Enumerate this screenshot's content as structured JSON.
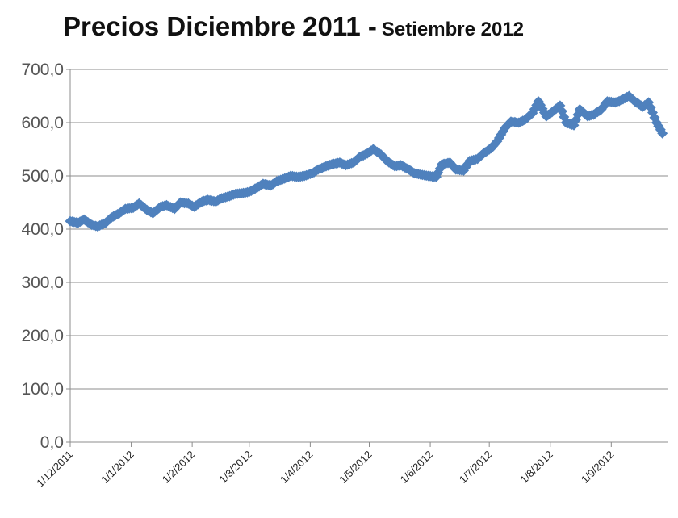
{
  "chart_data": {
    "type": "line",
    "title": "Precios Diciembre 2011 -",
    "subtitle": "Setiembre 2012",
    "xlabel": "",
    "ylabel": "",
    "ylim": [
      0,
      700
    ],
    "yticks": [
      "0,0",
      "100,0",
      "200,0",
      "300,0",
      "400,0",
      "500,0",
      "600,0",
      "700,0"
    ],
    "xlim": [
      "2011-12-01",
      "2012-09-30"
    ],
    "xticks": [
      {
        "date": "2011-12-01",
        "label": "1/12/2011"
      },
      {
        "date": "2012-01-01",
        "label": "1/1/2012"
      },
      {
        "date": "2012-02-01",
        "label": "1/2/2012"
      },
      {
        "date": "2012-03-01",
        "label": "1/3/2012"
      },
      {
        "date": "2012-04-01",
        "label": "1/4/2012"
      },
      {
        "date": "2012-05-01",
        "label": "1/5/2012"
      },
      {
        "date": "2012-06-01",
        "label": "1/6/2012"
      },
      {
        "date": "2012-07-01",
        "label": "1/7/2012"
      },
      {
        "date": "2012-08-01",
        "label": "1/8/2012"
      },
      {
        "date": "2012-09-01",
        "label": "1/9/2012"
      }
    ],
    "grid": "horizontal",
    "series_color": "#4f81bd",
    "marker": "diamond",
    "series": [
      {
        "x": [
          "2011-12-01",
          "2011-12-05",
          "2011-12-08",
          "2011-12-12",
          "2011-12-15",
          "2011-12-19",
          "2011-12-22",
          "2011-12-26",
          "2011-12-29",
          "2012-01-02",
          "2012-01-05",
          "2012-01-09",
          "2012-01-12",
          "2012-01-16",
          "2012-01-19",
          "2012-01-23",
          "2012-01-26",
          "2012-01-30",
          "2012-02-02",
          "2012-02-06",
          "2012-02-09",
          "2012-02-13",
          "2012-02-16",
          "2012-02-20",
          "2012-02-23",
          "2012-02-27",
          "2012-03-01",
          "2012-03-05",
          "2012-03-08",
          "2012-03-12",
          "2012-03-15",
          "2012-03-19",
          "2012-03-22",
          "2012-03-26",
          "2012-03-29",
          "2012-04-02",
          "2012-04-05",
          "2012-04-09",
          "2012-04-12",
          "2012-04-16",
          "2012-04-19",
          "2012-04-23",
          "2012-04-26",
          "2012-04-30",
          "2012-05-03",
          "2012-05-07",
          "2012-05-10",
          "2012-05-14",
          "2012-05-17",
          "2012-05-21",
          "2012-05-24",
          "2012-05-28",
          "2012-05-31",
          "2012-06-04",
          "2012-06-07",
          "2012-06-11",
          "2012-06-14",
          "2012-06-18",
          "2012-06-21",
          "2012-06-25",
          "2012-06-28",
          "2012-07-02",
          "2012-07-05",
          "2012-07-09",
          "2012-07-12",
          "2012-07-16",
          "2012-07-19",
          "2012-07-23",
          "2012-07-26",
          "2012-07-30",
          "2012-08-02",
          "2012-08-06",
          "2012-08-09",
          "2012-08-13",
          "2012-08-16",
          "2012-08-20",
          "2012-08-23",
          "2012-08-27",
          "2012-08-30",
          "2012-09-03",
          "2012-09-06",
          "2012-09-10",
          "2012-09-13",
          "2012-09-17",
          "2012-09-20",
          "2012-09-24",
          "2012-09-27"
        ],
        "values": [
          415,
          412,
          418,
          408,
          405,
          412,
          422,
          430,
          438,
          440,
          448,
          436,
          430,
          442,
          445,
          438,
          450,
          448,
          442,
          452,
          455,
          452,
          458,
          462,
          466,
          468,
          470,
          478,
          485,
          482,
          490,
          495,
          500,
          498,
          500,
          505,
          512,
          518,
          522,
          525,
          520,
          525,
          535,
          542,
          550,
          540,
          528,
          518,
          520,
          512,
          505,
          502,
          500,
          498,
          522,
          525,
          512,
          510,
          528,
          532,
          542,
          552,
          565,
          590,
          602,
          600,
          605,
          618,
          640,
          612,
          620,
          632,
          600,
          595,
          625,
          612,
          615,
          625,
          640,
          638,
          642,
          650,
          640,
          630,
          638,
          600,
          580
        ]
      }
    ]
  }
}
